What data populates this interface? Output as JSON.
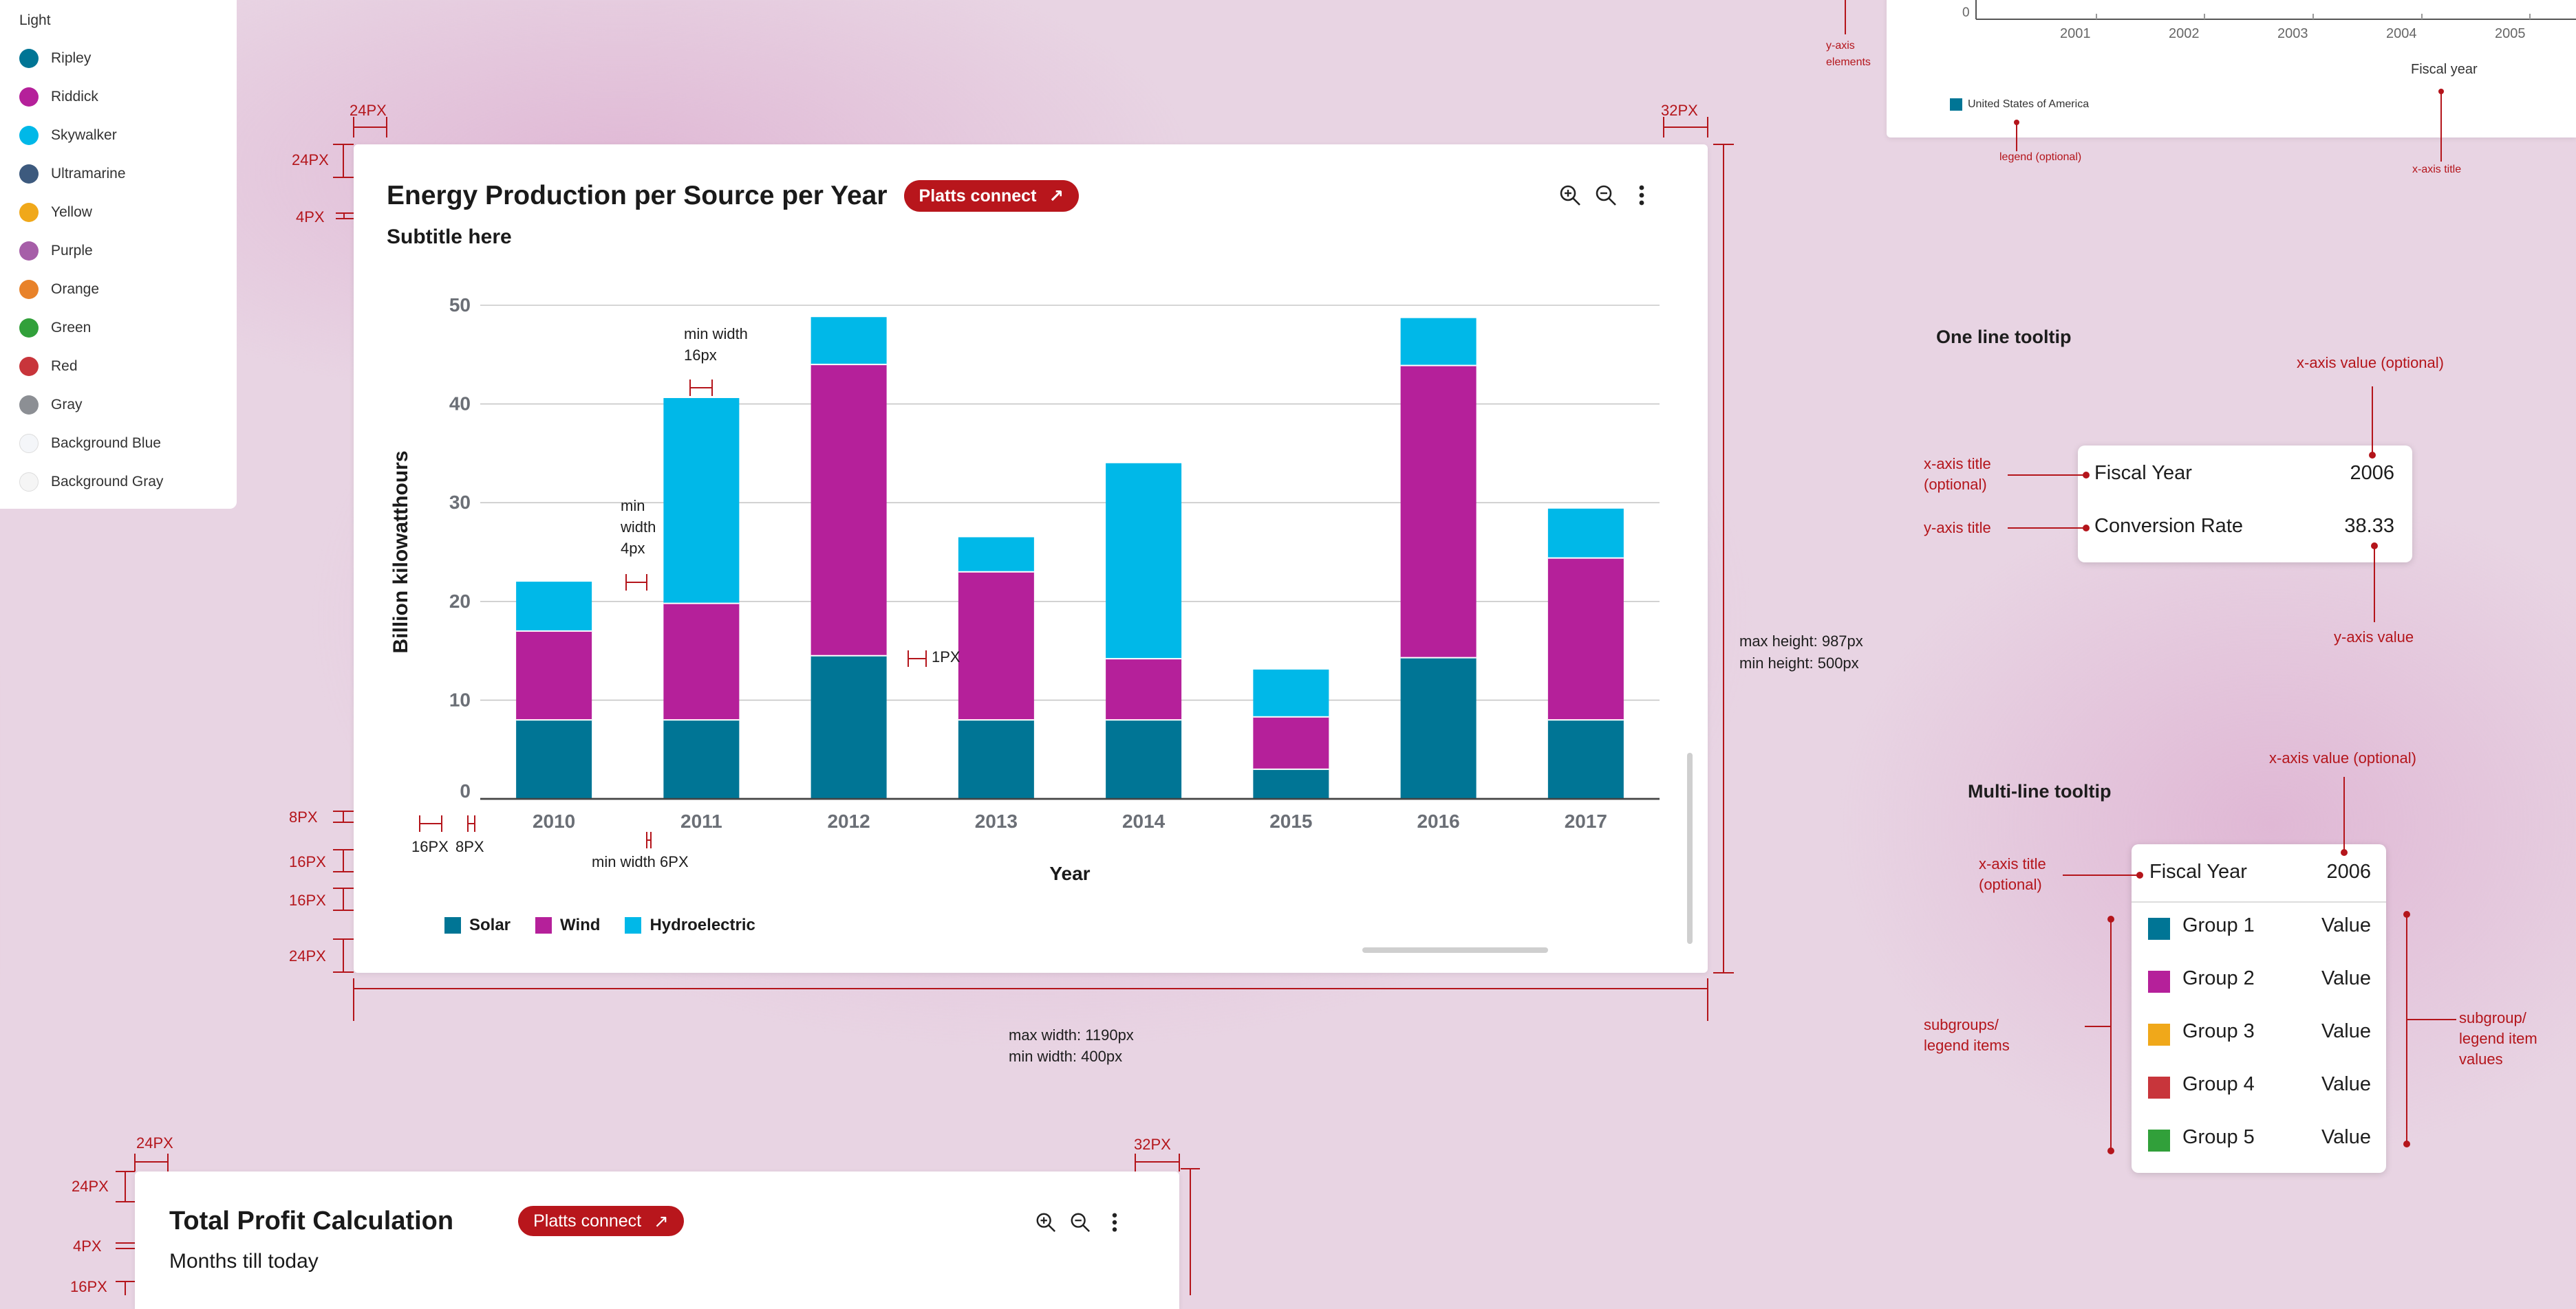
{
  "swatch_panel": {
    "title": "Light",
    "items": [
      {
        "label": "Ripley",
        "color": "#007595"
      },
      {
        "label": "Riddick",
        "color": "#b5209a"
      },
      {
        "label": "Skywalker",
        "color": "#00b8e8"
      },
      {
        "label": "Ultramarine",
        "color": "#3d5a7e"
      },
      {
        "label": "Yellow",
        "color": "#f0a81a"
      },
      {
        "label": "Purple",
        "color": "#a65ea8"
      },
      {
        "label": "Orange",
        "color": "#e8822a"
      },
      {
        "label": "Green",
        "color": "#31a03a"
      },
      {
        "label": "Red",
        "color": "#c8353b"
      },
      {
        "label": "Gray",
        "color": "#8c8f94"
      },
      {
        "label": "Background Blue",
        "color": "#f4f6f9"
      },
      {
        "label": "Background Gray",
        "color": "#f5f5f5"
      }
    ]
  },
  "main_card": {
    "title": "Energy Production per Source per Year",
    "badge_label": "Platts connect",
    "subtitle": "Subtitle here",
    "icons": [
      "zoom-in-icon",
      "zoom-out-icon",
      "more-vertical-icon"
    ]
  },
  "chart_data": {
    "type": "bar",
    "stacked": true,
    "title": "Energy Production per Source per Year",
    "subtitle": "Subtitle here",
    "xlabel": "Year",
    "ylabel": "Billion kilowatthours",
    "ylim": [
      0,
      50
    ],
    "yticks": [
      "0",
      "10",
      "20",
      "30",
      "40",
      "50"
    ],
    "categories": [
      "2010",
      "2011",
      "2012",
      "2013",
      "2014",
      "2015",
      "2016",
      "2017"
    ],
    "series": [
      {
        "name": "Solar",
        "color": "#007595",
        "values": [
          8,
          8,
          14.5,
          8,
          8,
          3,
          14.3,
          8
        ]
      },
      {
        "name": "Wind",
        "color": "#b5209a",
        "values": [
          9,
          11.8,
          29.5,
          15,
          6.2,
          5.3,
          29.6,
          16.4
        ]
      },
      {
        "name": "Hydroelectric",
        "color": "#00b8e8",
        "values": [
          5,
          20.8,
          4.8,
          3.5,
          19.8,
          4.8,
          4.8,
          5
        ]
      }
    ],
    "legend_position": "bottom-left",
    "grid": true
  },
  "annotations": {
    "min_width_16": "min width\n16px",
    "min_width_4": "min\nwidth\n4px",
    "one_px": "1PX",
    "min_width_6": "min width 6PX",
    "px16": "16PX",
    "px8": "8PX",
    "max_height": "max height: 987px",
    "min_height": "min height: 500px",
    "max_width": "max width: 1190px",
    "min_width": "min width: 400px",
    "left_dims": [
      "24PX",
      "4PX",
      "8PX",
      "16PX",
      "16PX",
      "24PX"
    ],
    "top_24": "24PX",
    "top_32": "32PX"
  },
  "top_right_chart": {
    "y_zero": "0",
    "years": [
      "2001",
      "2002",
      "2003",
      "2004",
      "2005"
    ],
    "x_title": "Fiscal year",
    "legend_label": "United States of America",
    "legend_color": "#007595",
    "ann_y_axis": "y-axis\nelements",
    "ann_legend": "legend (optional)",
    "ann_x_axis": "x-axis title"
  },
  "one_line_tooltip": {
    "heading": "One line tooltip",
    "rows": [
      {
        "label": "Fiscal Year",
        "value": "2006"
      },
      {
        "label": "Conversion Rate",
        "value": "38.33"
      }
    ],
    "ann_x_value": "x-axis value (optional)",
    "ann_x_title": "x-axis title\n(optional)",
    "ann_y_title": "y-axis title",
    "ann_y_value": "y-axis value"
  },
  "multi_line_tooltip": {
    "heading": "Multi-line tooltip",
    "header": {
      "label": "Fiscal Year",
      "value": "2006"
    },
    "groups": [
      {
        "label": "Group 1",
        "value": "Value",
        "color": "#007595"
      },
      {
        "label": "Group 2",
        "value": "Value",
        "color": "#b5209a"
      },
      {
        "label": "Group 3",
        "value": "Value",
        "color": "#f0a81a"
      },
      {
        "label": "Group 4",
        "value": "Value",
        "color": "#c8353b"
      },
      {
        "label": "Group 5",
        "value": "Value",
        "color": "#31a03a"
      }
    ],
    "ann_x_value": "x-axis value (optional)",
    "ann_x_title": "x-axis title\n(optional)",
    "ann_subgroups": "subgroups/\nlegend items",
    "ann_subgroup_values": "subgroup/\nlegend item\nvalues"
  },
  "second_card": {
    "title": "Total Profit Calculation",
    "badge_label": "Platts connect",
    "subtitle": "Months till today",
    "top_24": "24PX",
    "top_32": "32PX",
    "left_dims": [
      "24PX",
      "4PX",
      "16PX"
    ]
  }
}
